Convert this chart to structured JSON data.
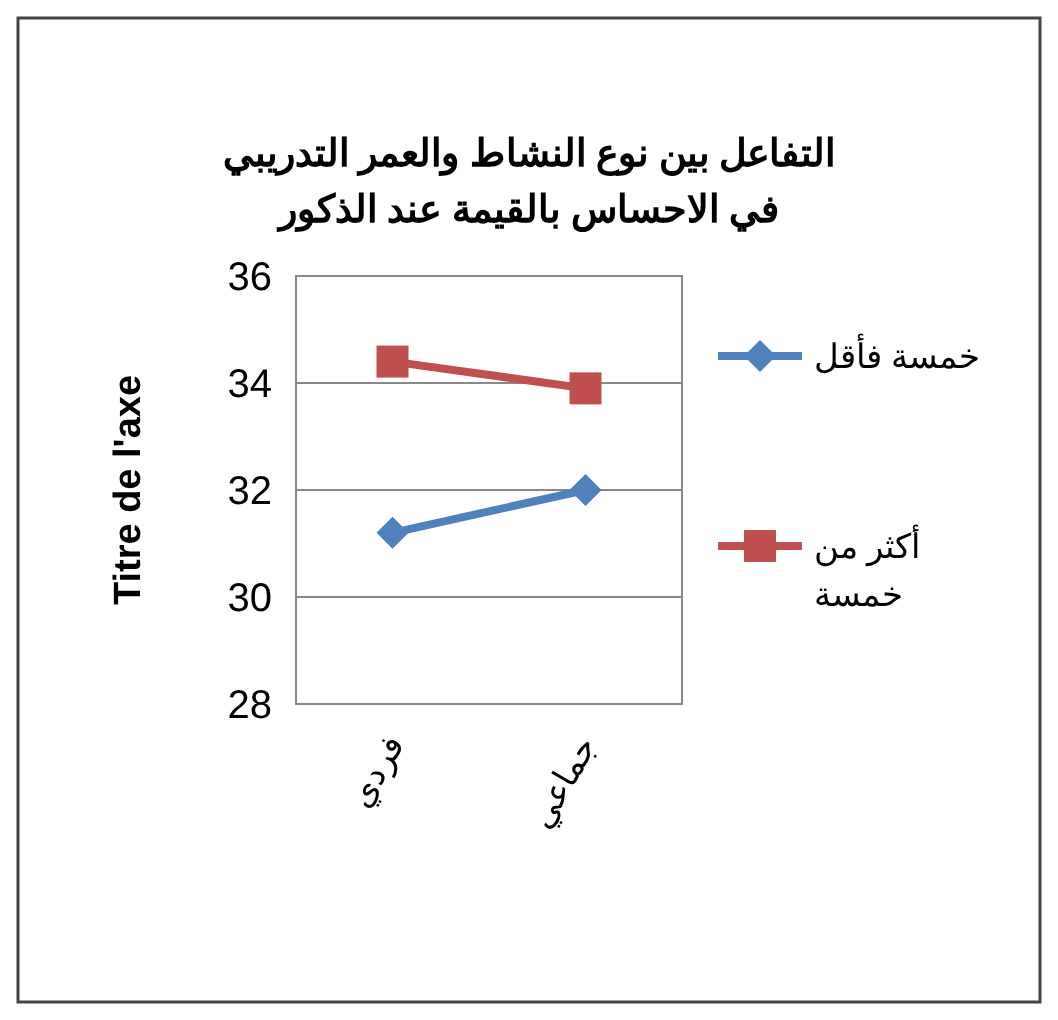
{
  "chart_data": {
    "type": "line",
    "title": "التفاعل بين نوع النشاط والعمر التدريبي في الاحساس بالقيمة عند الذكور",
    "ylabel": "Titre de l'axe",
    "categories": [
      "فردي",
      "جماعي"
    ],
    "series": [
      {
        "name": "خمسة فأقل",
        "color": "#4f81bd",
        "marker": "diamond",
        "values": [
          31.2,
          32.0
        ]
      },
      {
        "name": "أكثر من خمسة",
        "color": "#c0504d",
        "marker": "square",
        "values": [
          34.4,
          33.9
        ]
      }
    ],
    "ylim": [
      28,
      36
    ],
    "yticks": [
      28,
      30,
      32,
      34,
      36
    ],
    "grid": "y",
    "legend": "right"
  }
}
